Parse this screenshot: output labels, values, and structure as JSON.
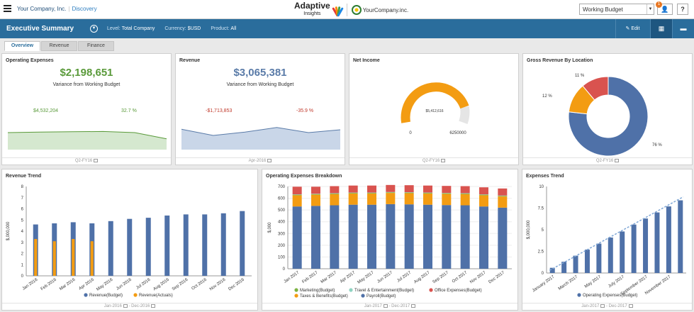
{
  "header": {
    "company": "Your Company, Inc.",
    "section": "Discovery",
    "brand_name": "Adaptive",
    "brand_sub": "Insights",
    "partner_name": "YourCompany.inc.",
    "version_select": "Working Budget",
    "notification_count": "1",
    "help": "?"
  },
  "titlebar": {
    "title": "Executive Summary",
    "filters": [
      {
        "label": "Level:",
        "value": "Total Company"
      },
      {
        "label": "Currency:",
        "value": "$USD"
      },
      {
        "label": "Product:",
        "value": "All"
      }
    ],
    "edit_label": "Edit"
  },
  "tabs": [
    "Overview",
    "Revenue",
    "Finance"
  ],
  "panels": {
    "opex": {
      "title": "Operating Expenses",
      "value": "$2,198,651",
      "value_color": "#5a9a3a",
      "variance_label": "Variance from Working Budget",
      "variance_amount": "$4,532,204",
      "variance_pct": "32.7 %",
      "variance_color": "#5a9a3a",
      "footer": "Q2-FY16"
    },
    "revenue": {
      "title": "Revenue",
      "value": "$3,065,381",
      "value_color": "#5a7ba8",
      "variance_label": "Variance from Working Budget",
      "variance_amount": "-$1,713,853",
      "variance_pct": "-35.9 %",
      "variance_color": "#c0392b",
      "footer": "Apr-2016"
    },
    "net_income": {
      "title": "Net Income",
      "center_value": "$5,412,616",
      "min_label": "0",
      "max_label": "6250000",
      "footer": "Q2-FY16"
    },
    "gross_rev": {
      "title": "Gross Revenue By Location",
      "footer": "Q2-FY16"
    },
    "rev_trend": {
      "title": "Revenue Trend",
      "footer_from": "Jan-2016",
      "footer_to": "Dec-2016"
    },
    "opex_breakdown": {
      "title": "Operating Expenses Breakdown",
      "footer_from": "Jan-2017",
      "footer_to": "Dec-2017"
    },
    "exp_trend": {
      "title": "Expenses Trend",
      "footer_from": "Jan-2017",
      "footer_to": "Dec-2017"
    }
  },
  "chart_data": [
    {
      "id": "opex_sparkline",
      "type": "area",
      "values": [
        0.6,
        0.62,
        0.63,
        0.64,
        0.6,
        0.38
      ],
      "color": "#d5e8cf",
      "line_color": "#5a9a3a"
    },
    {
      "id": "revenue_sparkline",
      "type": "area",
      "values": [
        0.72,
        0.5,
        0.62,
        0.78,
        0.6,
        0.7
      ],
      "color": "#c9d6e8",
      "line_color": "#5a7ba8"
    },
    {
      "id": "net_income_gauge",
      "type": "gauge",
      "value": 5412616,
      "min": 0,
      "max": 6250000,
      "color": "#f39c12"
    },
    {
      "id": "gross_revenue_location",
      "type": "pie",
      "slices": [
        {
          "label": "76 %",
          "value": 76,
          "color": "#4f71a8"
        },
        {
          "label": "12 %",
          "value": 12,
          "color": "#f39c12"
        },
        {
          "label": "11 %",
          "value": 11,
          "color": "#d9534f"
        }
      ]
    },
    {
      "id": "revenue_trend",
      "type": "bar",
      "ylabel": "$,000,000",
      "ylim": [
        0,
        8
      ],
      "yticks": [
        "0",
        "1",
        "2",
        "3",
        "4",
        "5",
        "6",
        "7",
        "8"
      ],
      "categories": [
        "Jan 2016",
        "Feb 2016",
        "Mar 2016",
        "Apr 2016",
        "May 2016",
        "Jun 2016",
        "Jul 2016",
        "Aug 2016",
        "Sep 2016",
        "Oct 2016",
        "Nov 2016",
        "Dec 2016"
      ],
      "series": [
        {
          "name": "Revenue(Budget)",
          "color": "#4f71a8",
          "values": [
            4.6,
            4.7,
            4.8,
            4.7,
            4.9,
            5.1,
            5.2,
            5.4,
            5.5,
            5.5,
            5.6,
            5.8
          ]
        },
        {
          "name": "Revenue(Actuals)",
          "color": "#f39c12",
          "values": [
            3.3,
            3.1,
            3.3,
            3.1,
            null,
            null,
            null,
            null,
            null,
            null,
            null,
            null
          ]
        }
      ]
    },
    {
      "id": "opex_breakdown",
      "type": "bar",
      "stacked": true,
      "ylabel": "$,000",
      "ylim": [
        0,
        700
      ],
      "yticks": [
        "0",
        "100",
        "200",
        "300",
        "400",
        "500",
        "600",
        "700"
      ],
      "categories": [
        "Jan 2017",
        "Feb 2017",
        "Mar 2017",
        "Apr 2017",
        "May 2017",
        "Jun 2017",
        "Jul 2017",
        "Aug 2017",
        "Sep 2017",
        "Oct 2017",
        "Nov 2017",
        "Dec 2017"
      ],
      "series": [
        {
          "name": "Payroll(Budget)",
          "color": "#4f71a8",
          "values": [
            530,
            535,
            540,
            545,
            545,
            550,
            548,
            545,
            542,
            540,
            530,
            520
          ]
        },
        {
          "name": "Taxes & Benefits(Budget)",
          "color": "#f39c12",
          "values": [
            95,
            95,
            95,
            95,
            95,
            95,
            95,
            95,
            95,
            95,
            95,
            95
          ]
        },
        {
          "name": "Marketing(Budget)",
          "color": "#7cb342",
          "values": [
            5,
            5,
            5,
            5,
            5,
            5,
            5,
            5,
            5,
            5,
            5,
            5
          ]
        },
        {
          "name": "Travel & Entertainment(Budget)",
          "color": "#8fd3c1",
          "values": [
            3,
            3,
            3,
            3,
            3,
            3,
            3,
            3,
            3,
            3,
            3,
            3
          ]
        },
        {
          "name": "Office Expenses(Budget)",
          "color": "#d9534f",
          "values": [
            65,
            60,
            60,
            60,
            60,
            60,
            60,
            60,
            60,
            60,
            60,
            60
          ]
        }
      ],
      "legend_order": [
        "Marketing(Budget)",
        "Travel & Entertainment(Budget)",
        "Office Expenses(Budget)",
        "Taxes & Benefits(Budget)",
        "Payroll(Budget)"
      ]
    },
    {
      "id": "expenses_trend",
      "type": "bar",
      "ylabel": "$,000,000",
      "ylim": [
        0,
        10
      ],
      "yticks": [
        "0",
        "2.5",
        "5",
        "7.5",
        "10"
      ],
      "categories": [
        "Jan 2017",
        "Feb 2017",
        "Mar 2017",
        "Apr 2017",
        "May 2017",
        "Jun 2017",
        "Jul 2017",
        "Aug 2017",
        "Sep 2017",
        "Oct 2017",
        "Nov 2017",
        "Dec 2017"
      ],
      "xlabels_shown": [
        "January 2017",
        "March 2017",
        "May 2017",
        "July 2017",
        "September 2017",
        "November 2017"
      ],
      "series": [
        {
          "name": "Operating Expenses(Budget)",
          "color": "#4f71a8",
          "values": [
            0.6,
            1.3,
            2.0,
            2.7,
            3.4,
            4.1,
            4.8,
            5.6,
            6.3,
            7.0,
            7.7,
            8.4
          ]
        }
      ],
      "trendline": true
    }
  ]
}
